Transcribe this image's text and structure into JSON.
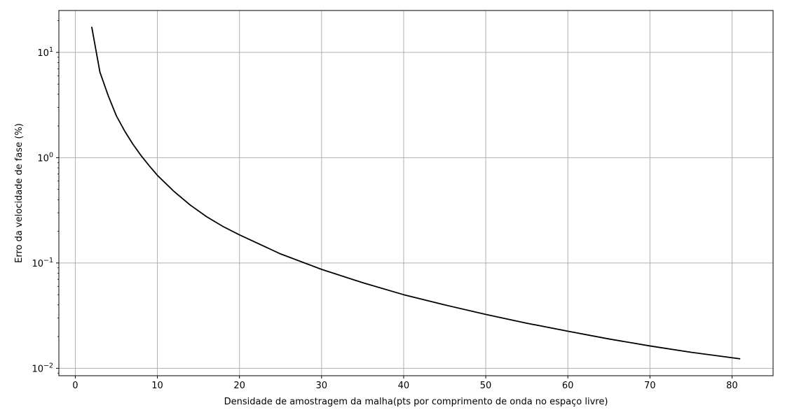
{
  "chart_data": {
    "type": "line",
    "title": "",
    "xlabel": "Densidade de amostragem da malha(pts por comprimento de onda no espaço livre)",
    "ylabel": "Erro da velocidade de fase (%)",
    "xscale": "linear",
    "yscale": "log",
    "xlim": [
      -2,
      85
    ],
    "ylim": [
      0.0085,
      25
    ],
    "grid": true,
    "legend": "none",
    "x_ticks": [
      0,
      10,
      20,
      30,
      40,
      50,
      60,
      70,
      80
    ],
    "x_tick_labels": [
      "0",
      "10",
      "20",
      "30",
      "40",
      "50",
      "60",
      "70",
      "80"
    ],
    "y_ticks": [
      0.01,
      0.1,
      1,
      10
    ],
    "y_tick_labels": [
      {
        "base": "10",
        "exp": "−2"
      },
      {
        "base": "10",
        "exp": "−1"
      },
      {
        "base": "10",
        "exp": "0"
      },
      {
        "base": "10",
        "exp": "1"
      }
    ],
    "colors": {
      "line": "#000000",
      "grid": "#b0b0b0",
      "frame": "#000000"
    },
    "series": [
      {
        "x": [
          2,
          3,
          4,
          5,
          6,
          7,
          8,
          9,
          10,
          12,
          14,
          16,
          18,
          20,
          25,
          30,
          35,
          40,
          45,
          50,
          55,
          60,
          65,
          70,
          75,
          81
        ],
        "y": [
          17.5,
          6.5,
          3.9,
          2.5,
          1.8,
          1.35,
          1.05,
          0.84,
          0.68,
          0.48,
          0.355,
          0.275,
          0.222,
          0.185,
          0.122,
          0.087,
          0.065,
          0.05,
          0.04,
          0.0325,
          0.0268,
          0.0225,
          0.019,
          0.0163,
          0.0142,
          0.0123
        ]
      }
    ]
  }
}
